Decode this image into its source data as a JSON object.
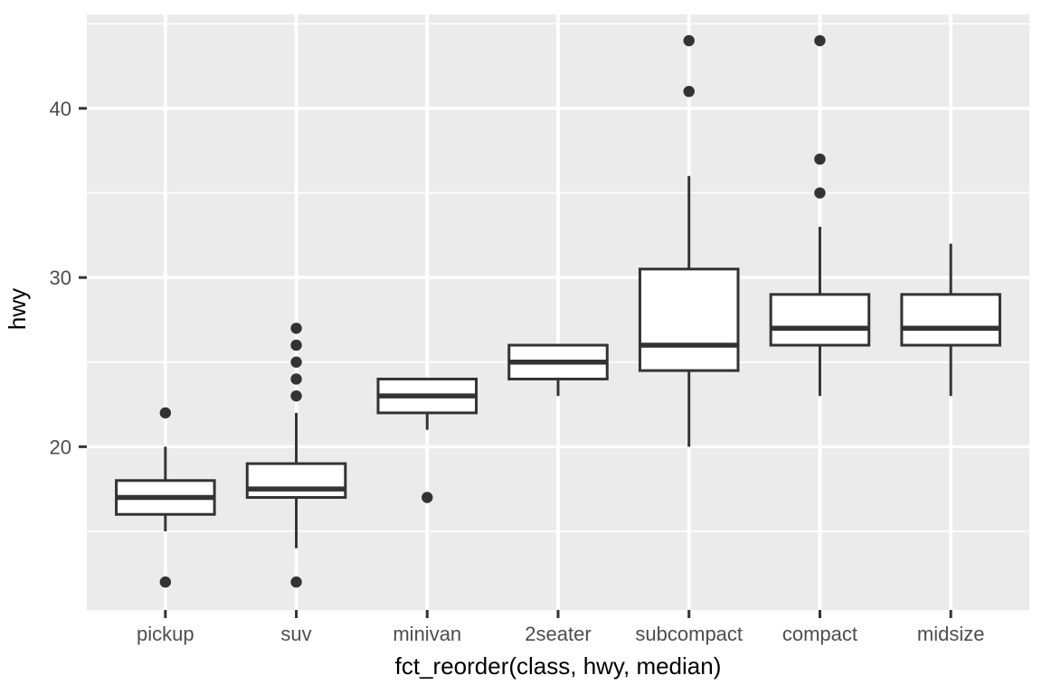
{
  "chart_data": {
    "type": "boxplot",
    "title": "",
    "xlabel": "fct_reorder(class, hwy, median)",
    "ylabel": "hwy",
    "categories": [
      "pickup",
      "suv",
      "minivan",
      "2seater",
      "subcompact",
      "compact",
      "midsize"
    ],
    "y_ticks": [
      20,
      30,
      40
    ],
    "y_minor_ticks": [
      15,
      25,
      35,
      45
    ],
    "ylim": [
      10.35,
      45.55
    ],
    "grid": true,
    "legend": "none",
    "series": [
      {
        "category": "pickup",
        "whisker_low": 15,
        "q1": 16,
        "median": 17,
        "q3": 18,
        "whisker_high": 20,
        "outliers": [
          12,
          22
        ]
      },
      {
        "category": "suv",
        "whisker_low": 14,
        "q1": 17,
        "median": 17.5,
        "q3": 19,
        "whisker_high": 22,
        "outliers": [
          12,
          23,
          24,
          25,
          26,
          27
        ]
      },
      {
        "category": "minivan",
        "whisker_low": 21,
        "q1": 22,
        "median": 23,
        "q3": 24,
        "whisker_high": 24,
        "outliers": [
          17
        ]
      },
      {
        "category": "2seater",
        "whisker_low": 23,
        "q1": 24,
        "median": 25,
        "q3": 26,
        "whisker_high": 26,
        "outliers": []
      },
      {
        "category": "subcompact",
        "whisker_low": 20,
        "q1": 24.5,
        "median": 26,
        "q3": 30.5,
        "whisker_high": 36,
        "outliers": [
          41,
          44
        ]
      },
      {
        "category": "compact",
        "whisker_low": 23,
        "q1": 26,
        "median": 27,
        "q3": 29,
        "whisker_high": 33,
        "outliers": [
          35,
          37,
          44
        ]
      },
      {
        "category": "midsize",
        "whisker_low": 23,
        "q1": 26,
        "median": 27,
        "q3": 29,
        "whisker_high": 32,
        "outliers": []
      }
    ],
    "colors": {
      "panel_background": "#EBEBEB",
      "gridline": "#FFFFFF",
      "box_stroke": "#333333",
      "box_fill": "#FFFFFF",
      "median": "#333333",
      "outlier": "#333333",
      "tick_mark": "#333333",
      "axis_text": "#4D4D4D",
      "axis_title_text": "#000000",
      "figure_background": "#FFFFFF"
    }
  }
}
